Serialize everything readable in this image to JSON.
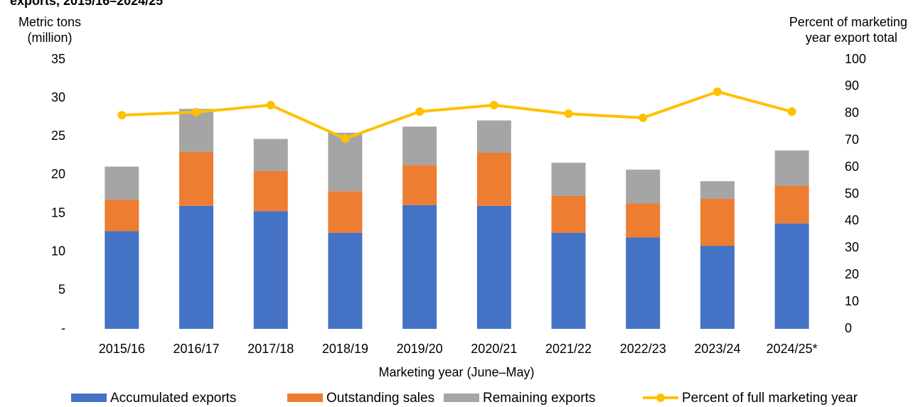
{
  "chart_data": {
    "type": "bar",
    "title": "exports, 2015/16–2024/25",
    "y_label": [
      "Metric tons",
      "(million)"
    ],
    "y2_label": [
      "Percent of marketing",
      "year export total"
    ],
    "x_label": "Marketing year (June–May)",
    "categories": [
      "2015/16",
      "2016/17",
      "2017/18",
      "2018/19",
      "2019/20",
      "2020/21",
      "2021/22",
      "2022/23",
      "2023/24",
      "2024/25*"
    ],
    "stacked": true,
    "series": [
      {
        "name": "Accumulated exports",
        "color": "#4472c4",
        "values": [
          12.7,
          16.0,
          15.3,
          12.5,
          16.1,
          16.0,
          12.5,
          11.9,
          10.8,
          13.7
        ]
      },
      {
        "name": "Outstanding sales",
        "color": "#ed7d31",
        "values": [
          4.1,
          7.0,
          5.2,
          5.4,
          5.2,
          6.9,
          4.8,
          4.4,
          6.1,
          4.9
        ]
      },
      {
        "name": "Remaining exports",
        "color": "#a5a5a5",
        "values": [
          4.3,
          5.6,
          4.2,
          7.6,
          5.0,
          4.2,
          4.3,
          4.4,
          2.3,
          4.6
        ]
      },
      {
        "name": "Percent of full marketing year",
        "color": "#ffc000",
        "type": "line",
        "axis": "y2",
        "values": [
          79.4,
          80.5,
          83.1,
          70.7,
          80.7,
          83.1,
          79.9,
          78.4,
          88.1,
          80.7
        ]
      }
    ],
    "ylim": [
      0,
      35
    ],
    "yticks": [
      {
        "value": 0,
        "label": "-"
      },
      5,
      10,
      15,
      20,
      25,
      30,
      35
    ],
    "y2lim": [
      0,
      100
    ],
    "y2ticks": [
      0,
      10,
      20,
      30,
      40,
      50,
      60,
      70,
      80,
      90,
      100
    ],
    "legend": "bottom"
  }
}
